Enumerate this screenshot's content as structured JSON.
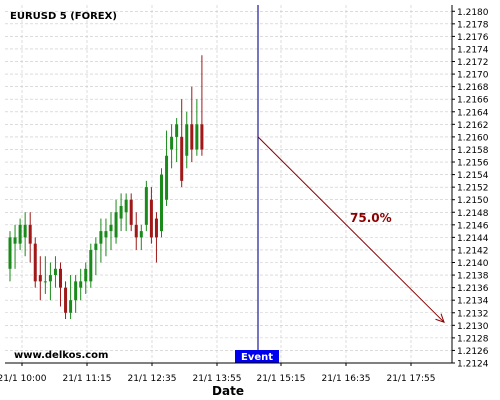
{
  "chart_data": {
    "type": "candlestick",
    "title": "EURUSD 5 (FOREX)",
    "watermark": "www.delkos.com",
    "xlabel": "Date",
    "ylabel": "",
    "y_ticks": [
      "1.2124",
      "1.2126",
      "1.2128",
      "1.2130",
      "1.2132",
      "1.2134",
      "1.2136",
      "1.2138",
      "1.2140",
      "1.2142",
      "1.2144",
      "1.2146",
      "1.2148",
      "1.2150",
      "1.2152",
      "1.2154",
      "1.2156",
      "1.2158",
      "1.2160",
      "1.2162",
      "1.2164",
      "1.2166",
      "1.2168",
      "1.2170",
      "1.2172",
      "1.2174",
      "1.2176",
      "1.2178",
      "1.2180"
    ],
    "ylim": [
      1.2124,
      1.2181
    ],
    "x_ticks": [
      "21/1 10:00",
      "21/1 11:15",
      "21/1 12:35",
      "21/1 13:55",
      "21/1 15:15",
      "21/1 16:35",
      "21/1 17:55"
    ],
    "grid": true,
    "up_color": "#1a8a1a",
    "down_color": "#a01818",
    "event": {
      "label": "Event",
      "line_color": "#1a1a9a",
      "label_bg": "#0000ee",
      "label_color": "#ffffff"
    },
    "projection": {
      "label": "75.0%",
      "from_price": 1.216,
      "to_price": 1.21305,
      "color": "#8b0000"
    },
    "candles": [
      {
        "o": 1.2139,
        "h": 1.2145,
        "l": 1.2137,
        "c": 1.2144
      },
      {
        "o": 1.2143,
        "h": 1.2146,
        "l": 1.2139,
        "c": 1.2144
      },
      {
        "o": 1.2143,
        "h": 1.2147,
        "l": 1.2142,
        "c": 1.2146
      },
      {
        "o": 1.2144,
        "h": 1.2148,
        "l": 1.2141,
        "c": 1.2146
      },
      {
        "o": 1.2146,
        "h": 1.2148,
        "l": 1.214,
        "c": 1.2143
      },
      {
        "o": 1.2143,
        "h": 1.2144,
        "l": 1.2136,
        "c": 1.2137
      },
      {
        "o": 1.2138,
        "h": 1.2141,
        "l": 1.2134,
        "c": 1.2137
      },
      {
        "o": 1.2137,
        "h": 1.2141,
        "l": 1.2135,
        "c": 1.2137
      },
      {
        "o": 1.2137,
        "h": 1.214,
        "l": 1.2134,
        "c": 1.2138
      },
      {
        "o": 1.2138,
        "h": 1.2141,
        "l": 1.2136,
        "c": 1.2139
      },
      {
        "o": 1.2139,
        "h": 1.214,
        "l": 1.2133,
        "c": 1.2136
      },
      {
        "o": 1.2136,
        "h": 1.2137,
        "l": 1.2131,
        "c": 1.2132
      },
      {
        "o": 1.2132,
        "h": 1.2138,
        "l": 1.2131,
        "c": 1.2134
      },
      {
        "o": 1.2134,
        "h": 1.2138,
        "l": 1.2132,
        "c": 1.2137
      },
      {
        "o": 1.2136,
        "h": 1.2139,
        "l": 1.2134,
        "c": 1.2137
      },
      {
        "o": 1.2137,
        "h": 1.214,
        "l": 1.2135,
        "c": 1.2139
      },
      {
        "o": 1.2137,
        "h": 1.2143,
        "l": 1.2136,
        "c": 1.2142
      },
      {
        "o": 1.2142,
        "h": 1.2144,
        "l": 1.2138,
        "c": 1.2143
      },
      {
        "o": 1.2143,
        "h": 1.2147,
        "l": 1.214,
        "c": 1.2145
      },
      {
        "o": 1.2144,
        "h": 1.2147,
        "l": 1.2141,
        "c": 1.2145
      },
      {
        "o": 1.2145,
        "h": 1.2148,
        "l": 1.2142,
        "c": 1.2146
      },
      {
        "o": 1.2144,
        "h": 1.215,
        "l": 1.2143,
        "c": 1.2148
      },
      {
        "o": 1.2147,
        "h": 1.2151,
        "l": 1.2145,
        "c": 1.2149
      },
      {
        "o": 1.2148,
        "h": 1.2151,
        "l": 1.2145,
        "c": 1.215
      },
      {
        "o": 1.215,
        "h": 1.2151,
        "l": 1.2145,
        "c": 1.2146
      },
      {
        "o": 1.2146,
        "h": 1.2148,
        "l": 1.2142,
        "c": 1.2144
      },
      {
        "o": 1.2144,
        "h": 1.2146,
        "l": 1.2142,
        "c": 1.2145
      },
      {
        "o": 1.2146,
        "h": 1.2153,
        "l": 1.2145,
        "c": 1.2152
      },
      {
        "o": 1.215,
        "h": 1.2152,
        "l": 1.2143,
        "c": 1.2144
      },
      {
        "o": 1.2147,
        "h": 1.2148,
        "l": 1.214,
        "c": 1.2144
      },
      {
        "o": 1.2145,
        "h": 1.2155,
        "l": 1.2144,
        "c": 1.2154
      },
      {
        "o": 1.215,
        "h": 1.2161,
        "l": 1.2149,
        "c": 1.2157
      },
      {
        "o": 1.2158,
        "h": 1.2162,
        "l": 1.2155,
        "c": 1.216
      },
      {
        "o": 1.216,
        "h": 1.2163,
        "l": 1.2156,
        "c": 1.2162
      },
      {
        "o": 1.216,
        "h": 1.2166,
        "l": 1.2152,
        "c": 1.2153
      },
      {
        "o": 1.2157,
        "h": 1.2164,
        "l": 1.2155,
        "c": 1.2162
      },
      {
        "o": 1.2162,
        "h": 1.2168,
        "l": 1.2156,
        "c": 1.2158
      },
      {
        "o": 1.2158,
        "h": 1.2166,
        "l": 1.2157,
        "c": 1.2162
      },
      {
        "o": 1.2162,
        "h": 1.2173,
        "l": 1.2157,
        "c": 1.2158
      }
    ]
  }
}
